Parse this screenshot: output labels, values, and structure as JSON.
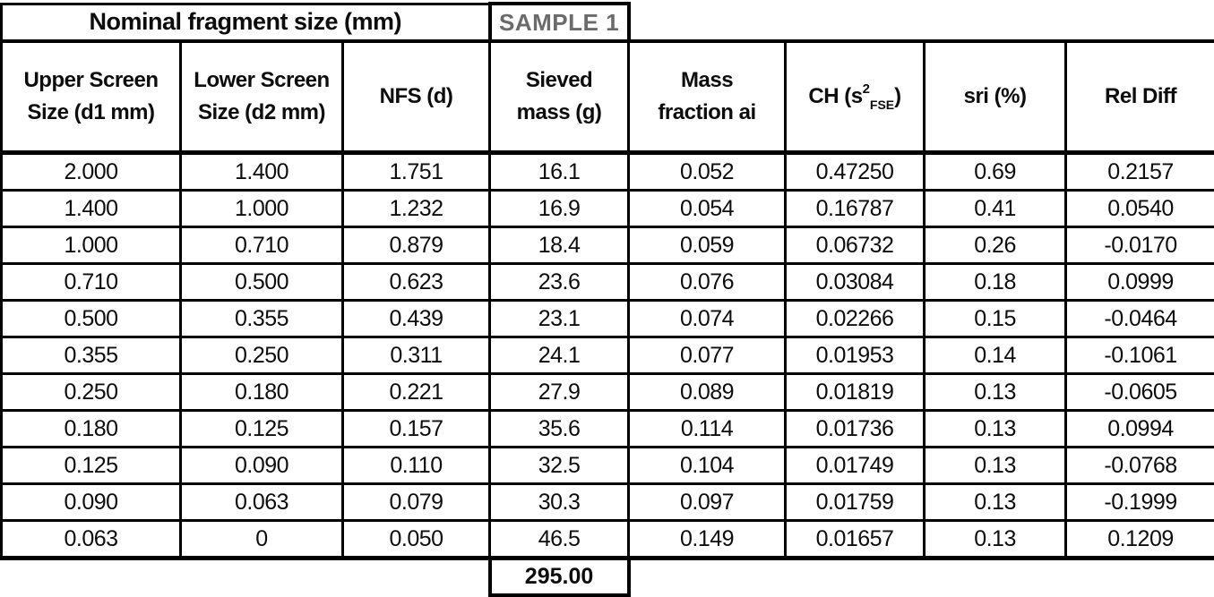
{
  "header": {
    "group_title": "Nominal fragment size (mm)",
    "sample_label": "SAMPLE 1",
    "sample_color": "#6b6b6b"
  },
  "table": {
    "columns": [
      {
        "id": "upper-screen-size",
        "lines": [
          "Upper Screen",
          "Size (d1 mm)"
        ]
      },
      {
        "id": "lower-screen-size",
        "lines": [
          "Lower Screen",
          "Size (d2 mm)"
        ]
      },
      {
        "id": "nfs",
        "lines": [
          "NFS (d)"
        ]
      },
      {
        "id": "sieved-mass",
        "lines": [
          "Sieved",
          "mass (g)"
        ]
      },
      {
        "id": "mass-fraction",
        "lines": [
          "Mass",
          "fraction ai"
        ]
      },
      {
        "id": "ch-variance",
        "pre": "CH (s",
        "sup": "2",
        "sub": "FSE",
        "post": ")"
      },
      {
        "id": "sri",
        "lines": [
          "sri (%)"
        ]
      },
      {
        "id": "rel-diff",
        "lines": [
          "Rel Diff"
        ]
      }
    ],
    "rows": [
      [
        "2.000",
        "1.400",
        "1.751",
        "16.1",
        "0.052",
        "0.47250",
        "0.69",
        "0.2157"
      ],
      [
        "1.400",
        "1.000",
        "1.232",
        "16.9",
        "0.054",
        "0.16787",
        "0.41",
        "0.0540"
      ],
      [
        "1.000",
        "0.710",
        "0.879",
        "18.4",
        "0.059",
        "0.06732",
        "0.26",
        "-0.0170"
      ],
      [
        "0.710",
        "0.500",
        "0.623",
        "23.6",
        "0.076",
        "0.03084",
        "0.18",
        "0.0999"
      ],
      [
        "0.500",
        "0.355",
        "0.439",
        "23.1",
        "0.074",
        "0.02266",
        "0.15",
        "-0.0464"
      ],
      [
        "0.355",
        "0.250",
        "0.311",
        "24.1",
        "0.077",
        "0.01953",
        "0.14",
        "-0.1061"
      ],
      [
        "0.250",
        "0.180",
        "0.221",
        "27.9",
        "0.089",
        "0.01819",
        "0.13",
        "-0.0605"
      ],
      [
        "0.180",
        "0.125",
        "0.157",
        "35.6",
        "0.114",
        "0.01736",
        "0.13",
        "0.0994"
      ],
      [
        "0.125",
        "0.090",
        "0.110",
        "32.5",
        "0.104",
        "0.01749",
        "0.13",
        "-0.0768"
      ],
      [
        "0.090",
        "0.063",
        "0.079",
        "30.3",
        "0.097",
        "0.01759",
        "0.13",
        "-0.1999"
      ],
      [
        "0.063",
        "0",
        "0.050",
        "46.5",
        "0.149",
        "0.01657",
        "0.13",
        "0.1209"
      ]
    ],
    "total_sieved_mass": "295.00"
  },
  "colors": {
    "border": "#000000",
    "text": "#0d0d0d",
    "background": "#ffffff",
    "sample_text": "#6b6b6b"
  }
}
